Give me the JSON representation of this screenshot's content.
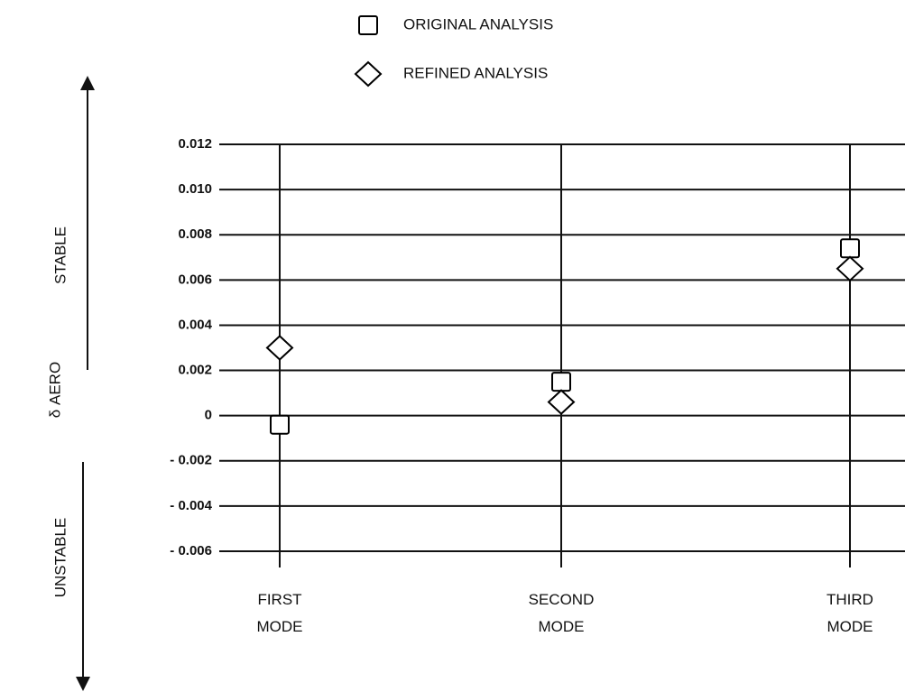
{
  "chart_data": {
    "type": "scatter",
    "y_label": "δ AERO",
    "annotations": [
      "STABLE",
      "UNSTABLE"
    ],
    "categories": [
      "FIRST MODE",
      "SECOND MODE",
      "THIRD MODE"
    ],
    "series": [
      {
        "name": "ORIGINAL ANALYSIS",
        "marker": "square",
        "color": "#000000",
        "values": [
          -0.0004,
          0.0015,
          0.0074
        ]
      },
      {
        "name": "REFINED ANALYSIS",
        "marker": "diamond",
        "color": "#000000",
        "values": [
          0.003,
          0.0006,
          0.0065
        ]
      }
    ],
    "ylim": [
      -0.006,
      0.012
    ],
    "yticks": [
      0.012,
      {
        "value": 0.01,
        "label": "0.010"
      },
      0.008,
      0.006,
      0.004,
      0.002,
      0,
      {
        "value": -0.002,
        "label": "- 0.002"
      },
      {
        "value": -0.004,
        "label": "- 0.004"
      },
      {
        "value": -0.006,
        "label": "- 0.006"
      }
    ],
    "grid": true,
    "legend": "top"
  }
}
